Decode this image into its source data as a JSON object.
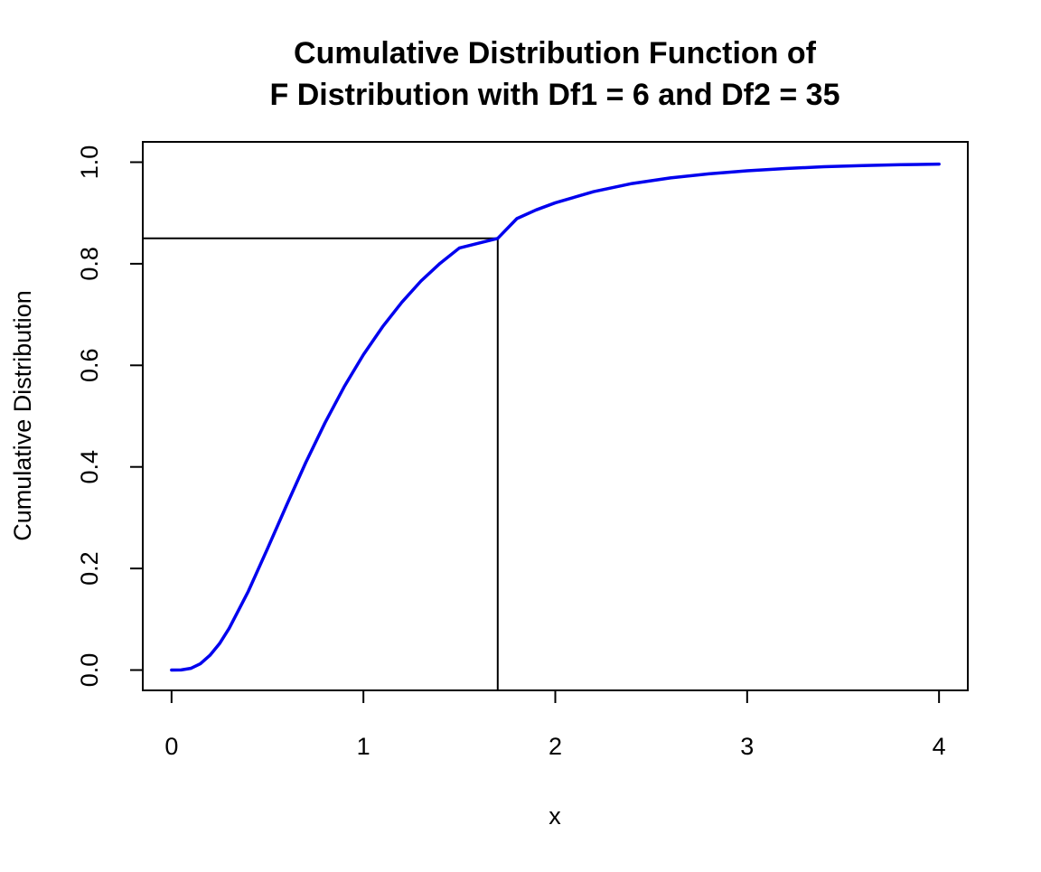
{
  "chart_data": {
    "type": "line",
    "title_lines": [
      "Cumulative Distribution Function of",
      "F Distribution with Df1 = 6 and Df2 = 35"
    ],
    "xlabel": "x",
    "ylabel": "Cumulative Distribution",
    "x_ticks": [
      0,
      1,
      2,
      3,
      4
    ],
    "x_tick_labels": [
      "0",
      "1",
      "2",
      "3",
      "4"
    ],
    "y_ticks": [
      0.0,
      0.2,
      0.4,
      0.6,
      0.8,
      1.0
    ],
    "y_tick_labels": [
      "0.0",
      "0.2",
      "0.4",
      "0.6",
      "0.8",
      "1.0"
    ],
    "xlim": [
      -0.15,
      4.15
    ],
    "ylim": [
      -0.04,
      1.04
    ],
    "grid": false,
    "legend": "none",
    "series": [
      {
        "color": "#0000ee",
        "x": [
          0,
          0.05,
          0.1,
          0.15,
          0.2,
          0.25,
          0.3,
          0.4,
          0.5,
          0.6,
          0.7,
          0.8,
          0.9,
          1.0,
          1.1,
          1.2,
          1.3,
          1.4,
          1.5,
          1.6,
          1.7,
          1.8,
          1.9,
          2.0,
          2.2,
          2.4,
          2.6,
          2.8,
          3.0,
          3.2,
          3.4,
          3.6,
          3.8,
          4.0
        ],
        "y": [
          0,
          0.0003,
          0.0033,
          0.0124,
          0.029,
          0.052,
          0.082,
          0.155,
          0.239,
          0.325,
          0.409,
          0.487,
          0.558,
          0.621,
          0.676,
          0.724,
          0.766,
          0.801,
          0.831,
          0.857,
          0.85,
          0.889,
          0.906,
          0.92,
          0.942,
          0.958,
          0.969,
          0.977,
          0.983,
          0.9875,
          0.991,
          0.9933,
          0.995,
          0.9962
        ]
      }
    ],
    "annotations": {
      "quantile_x": 1.7,
      "quantile_y": 0.85,
      "color": "#000000"
    }
  }
}
